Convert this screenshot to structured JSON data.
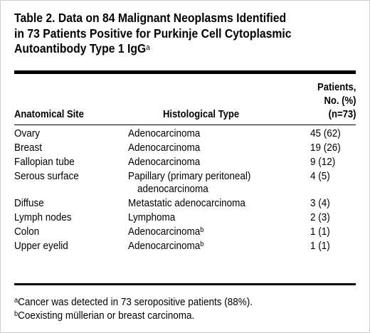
{
  "table": {
    "title": "Table 2. Data on 84 Malignant Neoplasms Identified in 73 Patients Positive for Purkinje Cell Cytoplasmic Autoantibody Type 1 IgG",
    "title_lines": [
      "Table 2. Data on 84 Malignant Neoplasms Identified",
      "in 73 Patients Positive for Purkinje Cell Cytoplasmic",
      "Autoantibody Type 1 IgG"
    ],
    "title_footnote_mark": "a",
    "headers": {
      "site": "Anatomical Site",
      "histology": "Histological Type",
      "patients_lines": [
        "Patients,",
        "No. (%)",
        "(n=73)"
      ]
    },
    "rows": [
      {
        "site": "Ovary",
        "histology": "Adenocarcinoma",
        "histology_cont": "",
        "mark": "",
        "patients": "45 (62)"
      },
      {
        "site": "Breast",
        "histology": "Adenocarcinoma",
        "histology_cont": "",
        "mark": "",
        "patients": "19 (26)"
      },
      {
        "site": "Fallopian tube",
        "histology": "Adenocarcinoma",
        "histology_cont": "",
        "mark": "",
        "patients": "9 (12)"
      },
      {
        "site": "Serous surface",
        "histology": "Papillary (primary peritoneal)",
        "histology_cont": "adenocarcinoma",
        "mark": "",
        "patients": "4 (5)"
      },
      {
        "site": "Diffuse",
        "histology": "Metastatic adenocarcinoma",
        "histology_cont": "",
        "mark": "",
        "patients": "3 (4)"
      },
      {
        "site": "Lymph nodes",
        "histology": "Lymphoma",
        "histology_cont": "",
        "mark": "",
        "patients": "2 (3)"
      },
      {
        "site": "Colon",
        "histology": "Adenocarcinoma",
        "histology_cont": "",
        "mark": "b",
        "patients": "1 (1)"
      },
      {
        "site": "Upper eyelid",
        "histology": "Adenocarcinoma",
        "histology_cont": "",
        "mark": "b",
        "patients": "1 (1)"
      }
    ],
    "footnotes": [
      {
        "mark": "a",
        "text": "Cancer was detected in 73 seropositive patients (88%)."
      },
      {
        "mark": "b",
        "text": "Coexisting müllerian or breast carcinoma."
      }
    ]
  }
}
